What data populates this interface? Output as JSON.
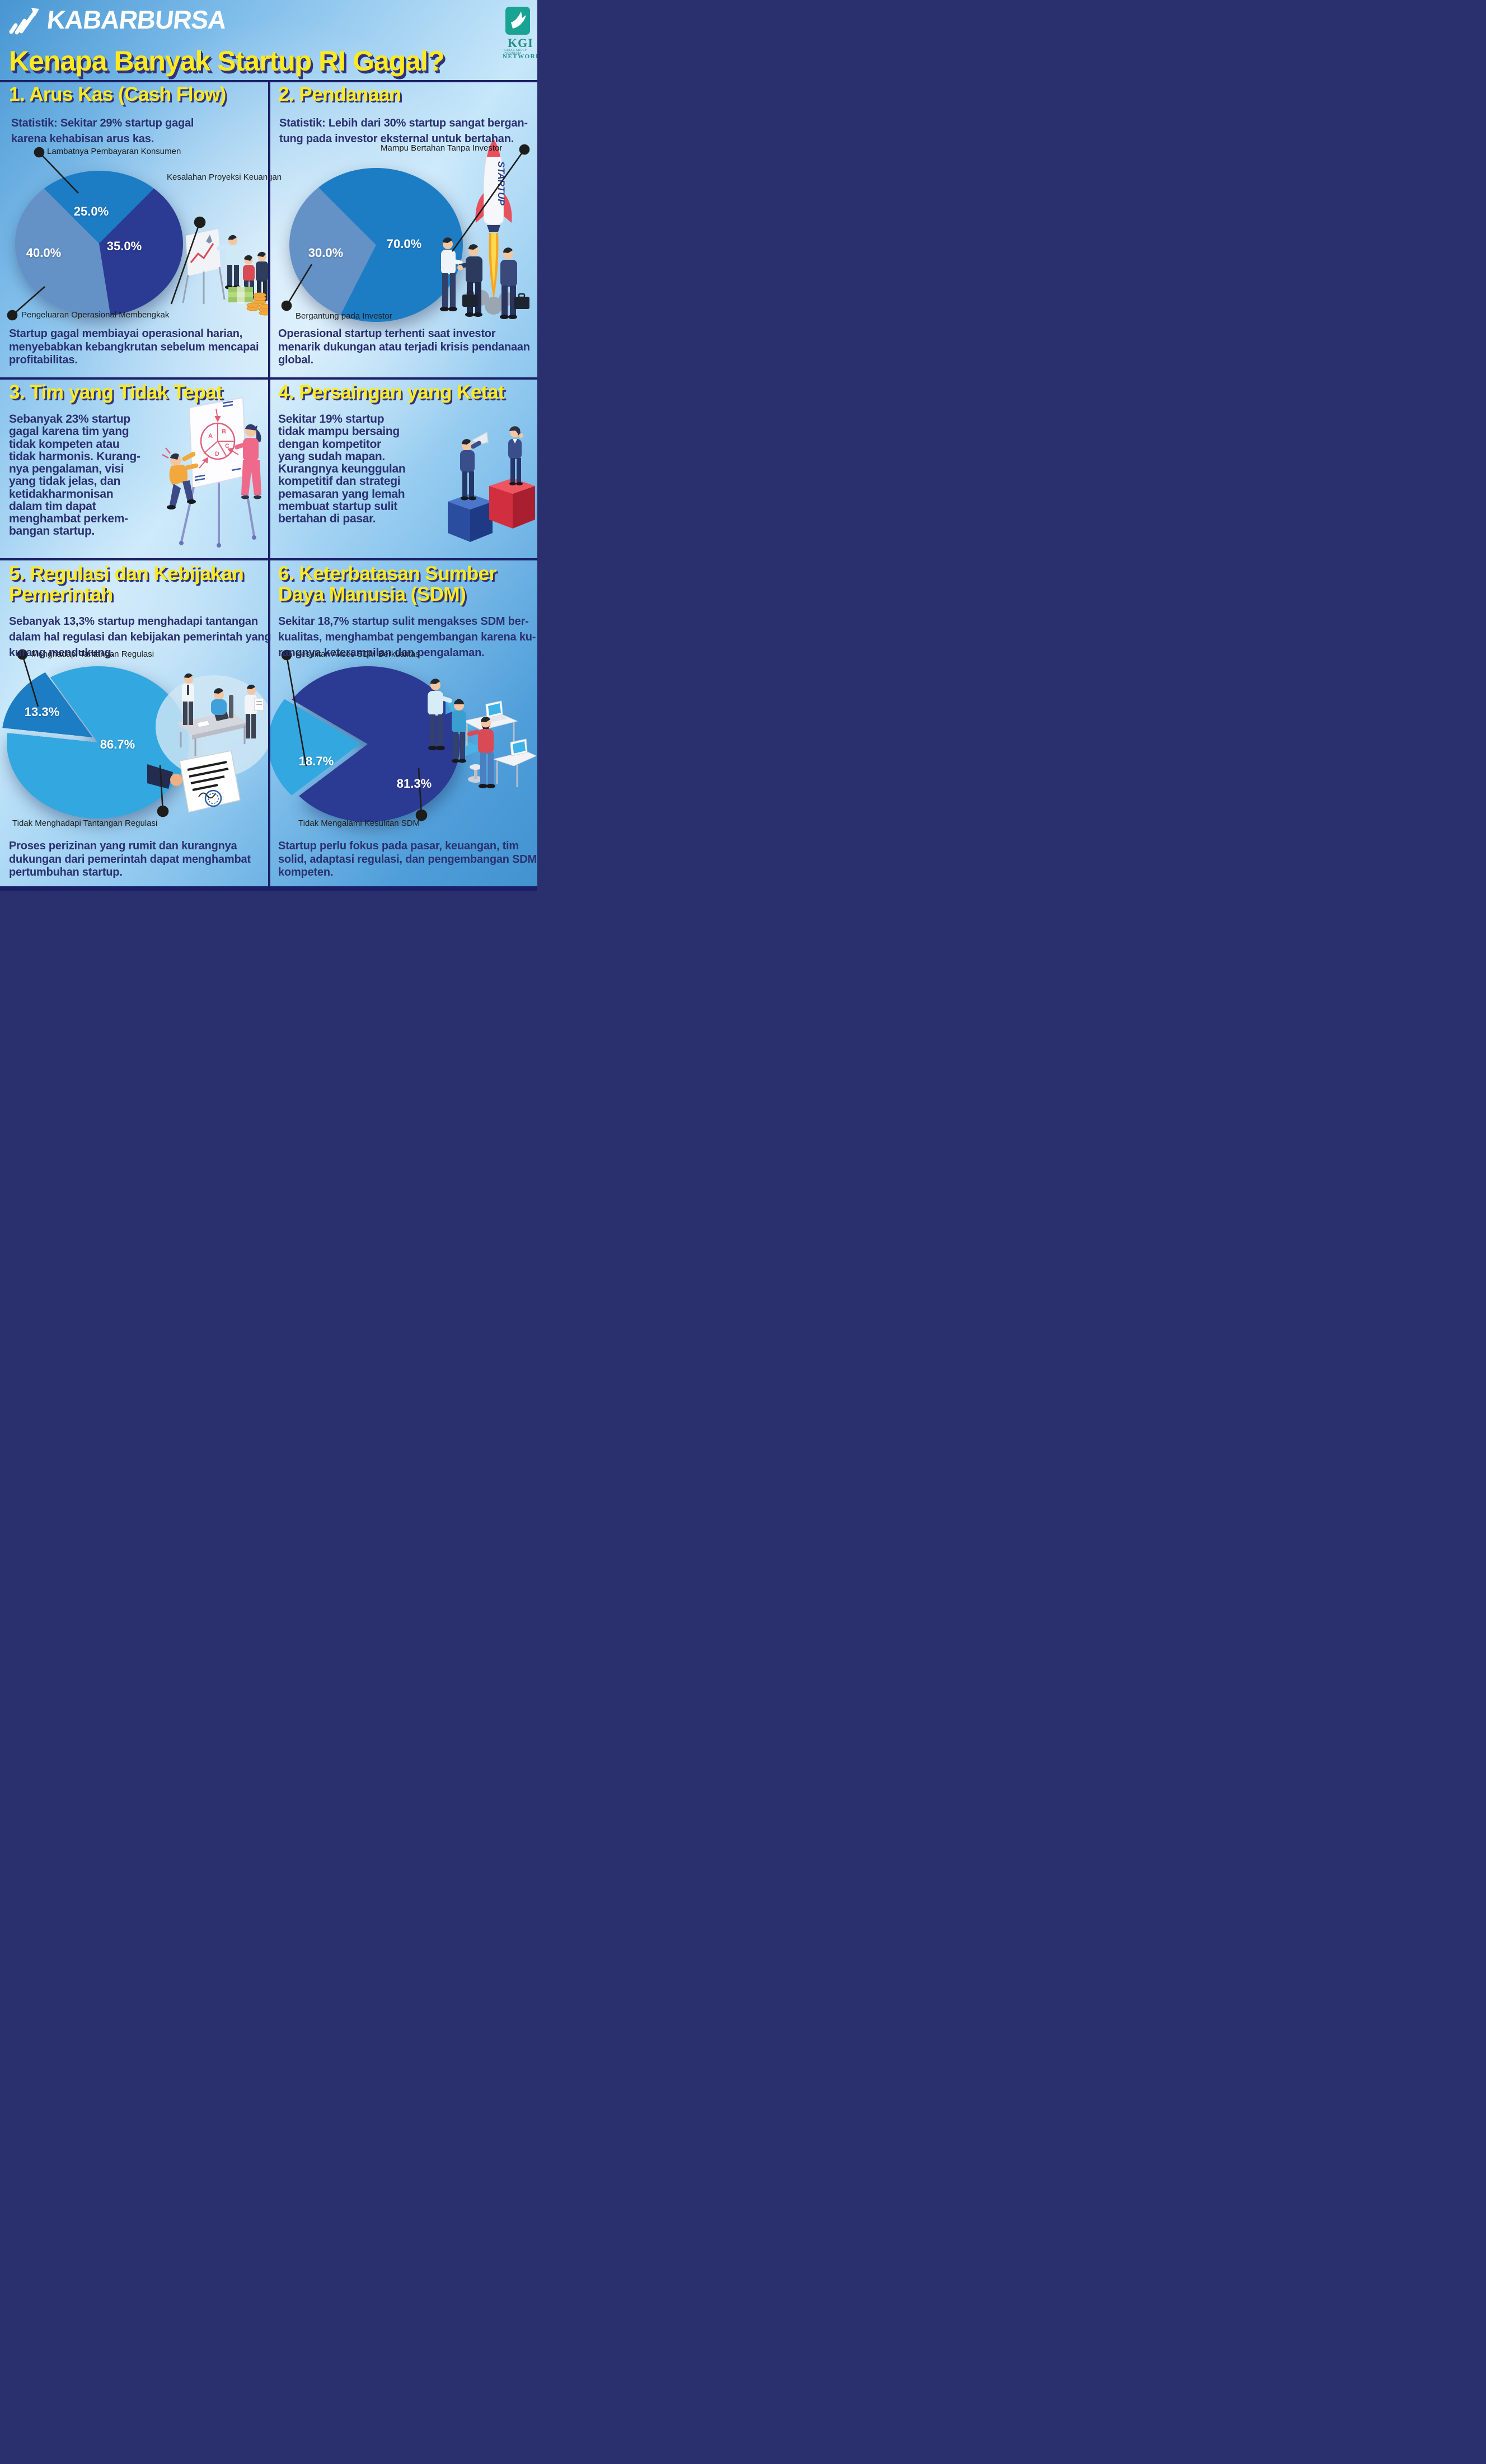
{
  "header": {
    "brand": "KABARBURSA",
    "title": "Kenapa Banyak Startup RI Gagal?",
    "kgi": {
      "abbr": "KGI",
      "group_line": "KABAR GROUP INDONESIA",
      "network_line": "NETWORK"
    }
  },
  "sections": [
    {
      "heading": "1. Arus Kas (Cash Flow)",
      "stat_lines": [
        "Statistik: Sekitar 29% startup gagal",
        "karena kehabisan arus kas."
      ],
      "desc_lines": [
        "Startup gagal membiayai operasional harian,",
        "menyebabkan kebangkrutan sebelum mencapai",
        "profitabilitas."
      ]
    },
    {
      "heading": "2. Pendanaan",
      "stat_lines": [
        "Statistik: Lebih dari 30% startup sangat bergan-",
        "tung pada investor eksternal untuk bertahan."
      ],
      "desc_lines": [
        "Operasional startup terhenti saat investor",
        "menarik dukungan atau terjadi krisis pendanaan",
        "global."
      ],
      "rocket_text": "STARTUP"
    },
    {
      "heading": "3. Tim yang Tidak Tepat",
      "body_lines": [
        "Sebanyak 23% startup",
        "gagal karena tim yang",
        "tidak kompeten atau",
        "tidak harmonis. Kurang-",
        "nya pengalaman, visi",
        "yang tidak jelas, dan",
        "ketidakharmonisan",
        "dalam tim dapat",
        "menghambat perkem-",
        "bangan startup."
      ]
    },
    {
      "heading": "4. Persaingan yang Ketat",
      "body_lines": [
        "Sekitar 19% startup",
        "tidak mampu bersaing",
        "dengan kompetitor",
        "yang sudah mapan.",
        "Kurangnya keunggulan",
        "kompetitif dan strategi",
        "pemasaran yang lemah",
        "membuat startup sulit",
        "bertahan di pasar."
      ]
    },
    {
      "heading_lines": [
        "5. Regulasi dan Kebijakan",
        "Pemerintah"
      ],
      "stat_lines": [
        "Sebanyak 13,3% startup menghadapi tantangan",
        "dalam hal regulasi dan kebijakan pemerintah yang",
        "kurang mendukung."
      ],
      "desc_lines": [
        "Proses perizinan yang rumit dan kurangnya",
        "dukungan dari pemerintah dapat menghambat",
        "pertumbuhan startup."
      ]
    },
    {
      "heading_lines": [
        "6. Keterbatasan Sumber",
        "Daya Manusia (SDM)"
      ],
      "stat_lines": [
        "Sekitar 18,7% startup sulit mengakses SDM ber-",
        "kualitas, menghambat pengembangan karena ku-",
        "rangnya keterampilan dan pengalaman."
      ],
      "desc_lines": [
        "Startup perlu fokus pada pasar, keuangan, tim",
        "solid, adaptasi regulasi, dan pengembangan SDM",
        "kompeten."
      ]
    }
  ],
  "chart_data": [
    {
      "type": "pie",
      "title": "Arus Kas (Cash Flow)",
      "labels": [
        "Lambatnya Pembayaran Konsumen",
        "Kesalahan Proyeksi Keuangan",
        "Pengeluaran Operasional Membengkak"
      ],
      "values": [
        25.0,
        35.0,
        40.0
      ],
      "colors": [
        "#1c7cc4",
        "#2b3a92",
        "#6491c6"
      ],
      "value_format": "percent_one_decimal",
      "label_style": "callout-dots"
    },
    {
      "type": "pie",
      "title": "Pendanaan",
      "labels": [
        "Mampu Bertahan Tanpa Investor",
        "Bergantung pada Investor"
      ],
      "values": [
        70.0,
        30.0
      ],
      "colors": [
        "#1c7cc4",
        "#6491c6"
      ],
      "value_format": "percent_one_decimal",
      "label_style": "callout-dots"
    },
    {
      "type": "pie",
      "title": "Regulasi dan Kebijakan Pemerintah",
      "labels": [
        "Menghadapi Tantangan Regulasi",
        "Tidak Menghadapi Tantangan Regulasi"
      ],
      "values": [
        13.3,
        86.7
      ],
      "colors": [
        "#1c7cc4",
        "#33a7e0"
      ],
      "value_format": "percent_one_decimal",
      "label_style": "callout-dots",
      "exploded_slice": 0
    },
    {
      "type": "pie",
      "title": "Keterbatasan Sumber Daya Manusia (SDM)",
      "labels": [
        "Kesulitan Akses SDM Berkualitas",
        "Tidak Mengalami Kesulitan SDM"
      ],
      "values": [
        18.7,
        81.3
      ],
      "colors": [
        "#33a7e0",
        "#2b3a92"
      ],
      "value_format": "percent_one_decimal",
      "label_style": "callout-dots",
      "exploded_slice": 0
    }
  ],
  "palette": {
    "heading_yellow": "#ffe91f",
    "heading_shadow_navy": "#2e3380",
    "body_navy": "#2b3070",
    "divider_navy": "#1b2066",
    "callout_black": "#1d1d1b",
    "background_blue": "#69b1e2",
    "background_light": "#d6ecfb",
    "pie_blue": "#1c7cc4",
    "pie_navy": "#2b3a92",
    "pie_gray_blue": "#6491c6",
    "pie_cyan": "#33a7e0",
    "kgi_teal": "#18a392"
  }
}
